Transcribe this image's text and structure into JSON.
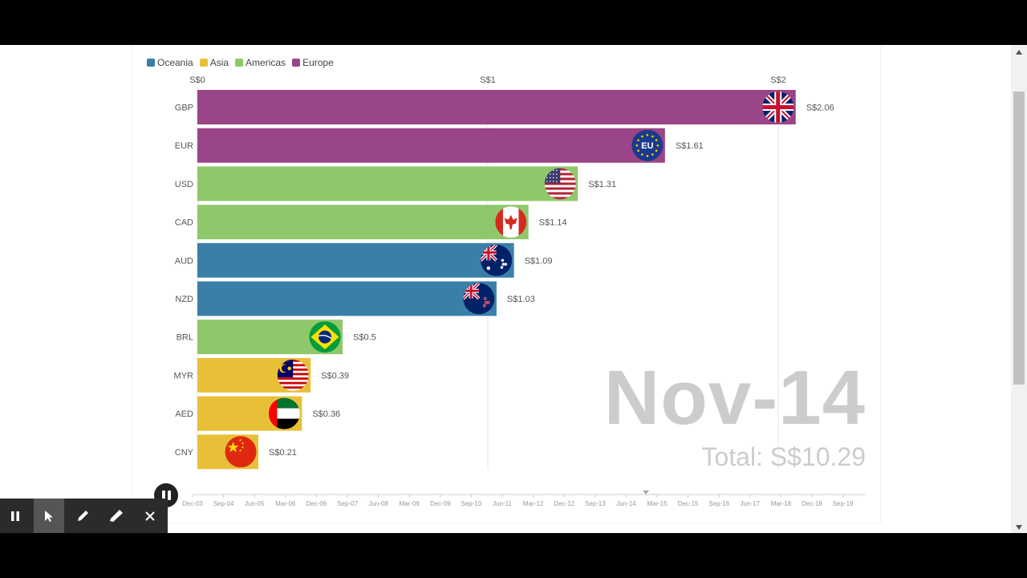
{
  "legend": [
    {
      "name": "Oceania",
      "color": "#3a7fa8"
    },
    {
      "name": "Asia",
      "color": "#e8c038"
    },
    {
      "name": "Americas",
      "color": "#8fc86a"
    },
    {
      "name": "Europe",
      "color": "#9a4587"
    }
  ],
  "date": "Nov-14",
  "total": "Total: S$10.29",
  "chart_data": {
    "type": "bar",
    "orientation": "horizontal",
    "x_ticks": [
      {
        "value": 0,
        "label": "S$0"
      },
      {
        "value": 1,
        "label": "S$1"
      },
      {
        "value": 2,
        "label": "S$2"
      }
    ],
    "bars": [
      {
        "category": "GBP",
        "value": 2.06,
        "label": "S$2.06",
        "region": "Europe",
        "flag": "uk-flag-icon"
      },
      {
        "category": "EUR",
        "value": 1.61,
        "label": "S$1.61",
        "region": "Europe",
        "flag": "eu-flag-icon"
      },
      {
        "category": "USD",
        "value": 1.31,
        "label": "S$1.31",
        "region": "Americas",
        "flag": "us-flag-icon"
      },
      {
        "category": "CAD",
        "value": 1.14,
        "label": "S$1.14",
        "region": "Americas",
        "flag": "canada-flag-icon"
      },
      {
        "category": "AUD",
        "value": 1.09,
        "label": "S$1.09",
        "region": "Oceania",
        "flag": "australia-flag-icon"
      },
      {
        "category": "NZD",
        "value": 1.03,
        "label": "S$1.03",
        "region": "Oceania",
        "flag": "new-zealand-flag-icon"
      },
      {
        "category": "BRL",
        "value": 0.5,
        "label": "S$0.5",
        "region": "Americas",
        "flag": "brazil-flag-icon"
      },
      {
        "category": "MYR",
        "value": 0.39,
        "label": "S$0.39",
        "region": "Asia",
        "flag": "malaysia-flag-icon"
      },
      {
        "category": "AED",
        "value": 0.36,
        "label": "S$0.36",
        "region": "Asia",
        "flag": "uae-flag-icon"
      },
      {
        "category": "CNY",
        "value": 0.21,
        "label": "S$0.21",
        "region": "Asia",
        "flag": "china-flag-icon"
      }
    ],
    "time_axis": [
      "Dec-03",
      "Sep-04",
      "Jun-05",
      "Mar-06",
      "Dec-06",
      "Sep-07",
      "Jun-08",
      "Mar-09",
      "Dec-09",
      "Sep-10",
      "Jun-11",
      "Mar-12",
      "Dec-12",
      "Sep-13",
      "Jun-14",
      "Mar-15",
      "Dec-15",
      "Sep-16",
      "Jun-17",
      "Mar-18",
      "Dec-18",
      "Sep-19"
    ],
    "current_time": "Nov-14",
    "grid": true
  },
  "toolbar": {
    "items": [
      "pause-icon",
      "pointer-icon",
      "pen-icon",
      "highlighter-icon",
      "close-icon"
    ]
  }
}
